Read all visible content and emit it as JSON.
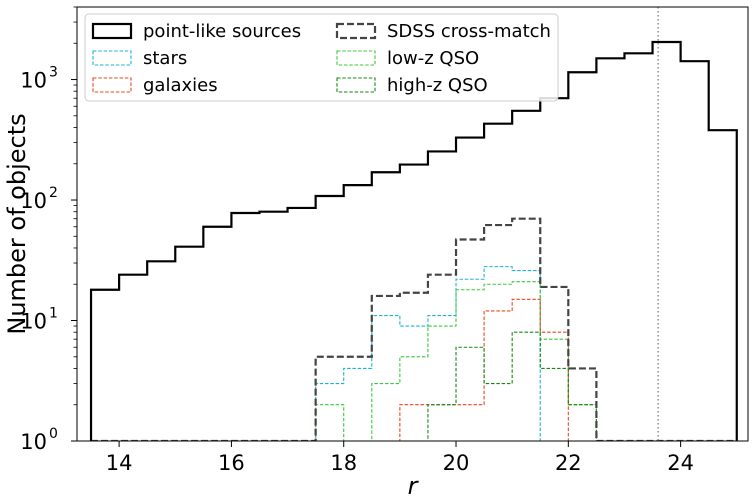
{
  "chart_data": {
    "type": "histogram",
    "title": "",
    "xlabel": "r",
    "ylabel": "Number of objects",
    "xlim": [
      13.25,
      25.2
    ],
    "ylim": [
      1,
      4000
    ],
    "yscale": "log",
    "x_ticks": [
      14,
      16,
      18,
      20,
      22,
      24
    ],
    "x_tick_labels": [
      "14",
      "16",
      "18",
      "20",
      "22",
      "24"
    ],
    "y_ticks": [
      1,
      10,
      100,
      1000
    ],
    "y_tick_labels": [
      "10",
      "10",
      "10",
      "10"
    ],
    "y_tick_exponents": [
      "0",
      "1",
      "2",
      "3"
    ],
    "vline": {
      "x": 23.6,
      "style": "dotted",
      "color": "#888888"
    },
    "bin_edges": [
      13.5,
      14.0,
      14.5,
      15.0,
      15.5,
      16.0,
      16.5,
      17.0,
      17.5,
      18.0,
      18.5,
      19.0,
      19.5,
      20.0,
      20.5,
      21.0,
      21.5,
      22.0,
      22.5,
      23.0,
      23.5,
      24.0,
      24.5,
      25.0
    ],
    "series": [
      {
        "name": "point-like sources",
        "color": "#000000",
        "style": "solid",
        "width": 2.2,
        "values": [
          18,
          24,
          31,
          41,
          60,
          78,
          80,
          86,
          108,
          133,
          170,
          197,
          253,
          330,
          430,
          550,
          700,
          1150,
          1500,
          1650,
          2050,
          1420,
          380
        ]
      },
      {
        "name": "SDSS cross-match",
        "color": "#444444",
        "style": "dashed",
        "width": 2.2,
        "values": [
          1,
          1,
          1,
          1,
          1,
          1,
          1,
          1,
          5,
          5,
          16,
          17,
          24,
          47,
          62,
          70,
          19,
          4,
          1,
          1,
          1,
          1,
          1
        ]
      },
      {
        "name": "stars",
        "color": "#1ab3d6",
        "style": "dashed",
        "width": 1.1,
        "values": [
          1,
          1,
          1,
          1,
          1,
          1,
          1,
          1,
          3,
          4,
          11,
          9,
          11,
          22,
          28,
          26,
          1,
          1,
          1,
          1,
          1,
          1,
          1
        ]
      },
      {
        "name": "low-z QSO",
        "color": "#3cc83c",
        "style": "dashed",
        "width": 1.1,
        "values": [
          1,
          1,
          1,
          1,
          1,
          1,
          1,
          1,
          2,
          1,
          3,
          5,
          9,
          18,
          20,
          21,
          7,
          2,
          1,
          1,
          1,
          1,
          1
        ]
      },
      {
        "name": "galaxies",
        "color": "#e8471e",
        "style": "dashed",
        "width": 1.1,
        "values": [
          1,
          1,
          1,
          1,
          1,
          1,
          1,
          1,
          1,
          1,
          1,
          2,
          2,
          2,
          12,
          15,
          8,
          1,
          1,
          1,
          1,
          1,
          1
        ]
      },
      {
        "name": "high-z QSO",
        "color": "#138a13",
        "style": "dashed",
        "width": 1.1,
        "values": [
          1,
          1,
          1,
          1,
          1,
          1,
          1,
          1,
          1,
          1,
          1,
          1,
          2,
          6,
          3,
          8,
          4,
          2,
          1,
          1,
          1,
          1,
          1
        ]
      }
    ],
    "legend": {
      "placement": "top-left",
      "columns": 2,
      "entries": [
        "point-like sources",
        "stars",
        "galaxies",
        "SDSS cross-match",
        "low-z QSO",
        "high-z QSO"
      ]
    }
  }
}
